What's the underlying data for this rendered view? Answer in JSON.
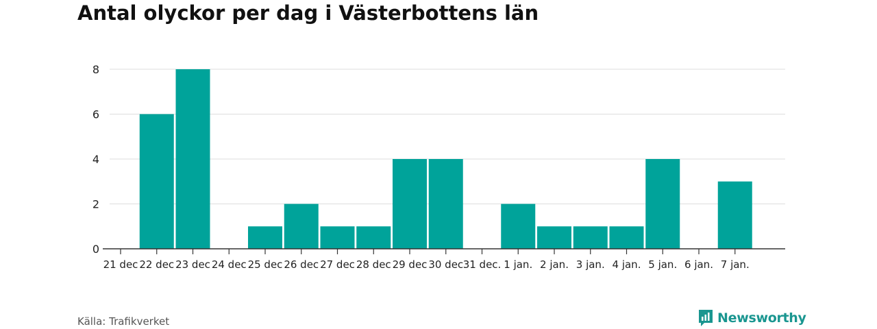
{
  "title": "Antal olyckor per dag i Västerbottens län",
  "source": "Källa: Trafikverket",
  "brand": {
    "name": "Newsworthy",
    "icon": "newsworthy-logo-icon",
    "color": "#1a9690"
  },
  "chart_data": {
    "type": "bar",
    "title": "Antal olyckor per dag i Västerbottens län",
    "xlabel": "",
    "ylabel": "",
    "categories": [
      "21 dec",
      "22 dec",
      "23 dec",
      "24 dec",
      "25 dec",
      "26 dec",
      "27 dec",
      "28 dec",
      "29 dec",
      "30 dec",
      "31 dec.",
      "1 jan.",
      "2 jan.",
      "3 jan.",
      "4 jan.",
      "5 jan.",
      "6 jan.",
      "7 jan."
    ],
    "values": [
      0,
      6,
      8,
      0,
      1,
      2,
      1,
      1,
      4,
      4,
      0,
      2,
      1,
      1,
      1,
      4,
      0,
      3
    ],
    "ylim": [
      0,
      8
    ],
    "yticks": [
      0,
      2,
      4,
      6,
      8
    ],
    "grid": true,
    "bar_color": "#00a39a"
  }
}
